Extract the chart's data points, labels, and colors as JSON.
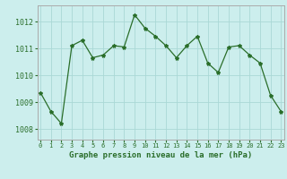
{
  "x": [
    0,
    1,
    2,
    3,
    4,
    5,
    6,
    7,
    8,
    9,
    10,
    11,
    12,
    13,
    14,
    15,
    16,
    17,
    18,
    19,
    20,
    21,
    22,
    23
  ],
  "y": [
    1009.35,
    1008.65,
    1008.2,
    1011.1,
    1011.3,
    1010.65,
    1010.75,
    1011.1,
    1011.05,
    1012.25,
    1011.75,
    1011.45,
    1011.1,
    1010.65,
    1011.1,
    1011.45,
    1010.45,
    1010.1,
    1011.05,
    1011.1,
    1010.75,
    1010.45,
    1009.25,
    1008.65
  ],
  "line_color": "#2a6e2a",
  "marker": "*",
  "marker_size": 3,
  "bg_color": "#cceeed",
  "grid_color": "#aad8d6",
  "title": "Graphe pression niveau de la mer (hPa)",
  "title_color": "#2a6e2a",
  "ylabel_ticks": [
    1008,
    1009,
    1010,
    1011,
    1012
  ],
  "xlim": [
    -0.3,
    23.3
  ],
  "ylim": [
    1007.6,
    1012.6
  ],
  "xtick_labels": [
    "0",
    "1",
    "2",
    "3",
    "4",
    "5",
    "6",
    "7",
    "8",
    "9",
    "10",
    "11",
    "12",
    "13",
    "14",
    "15",
    "16",
    "17",
    "18",
    "19",
    "20",
    "21",
    "22",
    "23"
  ],
  "spine_color": "#aaaaaa"
}
